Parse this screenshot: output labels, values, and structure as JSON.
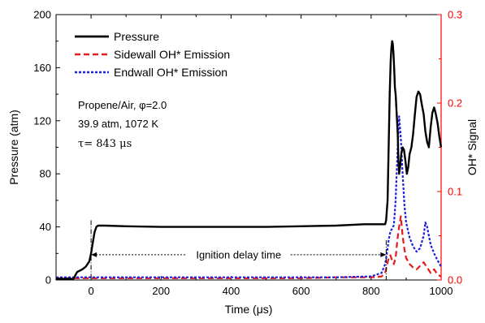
{
  "chart_data": {
    "type": "line",
    "xlabel": "Time (μs)",
    "ylabel_left": "Pressure (atm)",
    "ylabel_right": "OH* Signal",
    "xlim": [
      -100,
      1000
    ],
    "ylim_left": [
      0,
      200
    ],
    "ylim_right": [
      0,
      0.3
    ],
    "x_ticks": [
      "0",
      "200",
      "400",
      "600",
      "800",
      "1000"
    ],
    "y_ticks_left": [
      "0",
      "40",
      "80",
      "120",
      "160",
      "200"
    ],
    "y_ticks_right": [
      "0.0",
      "0.1",
      "0.2",
      "0.3"
    ],
    "grid": false,
    "legend_position": "top-left",
    "colors": {
      "pressure": "#000000",
      "sidewall": "#e41a1c",
      "endwall": "#1f1fe0",
      "right_axis": "#ff0000"
    },
    "series": [
      {
        "name": "Pressure",
        "axis": "left",
        "style": "solid",
        "x": [
          -100,
          -50,
          -40,
          -25,
          -15,
          -5,
          0,
          5,
          10,
          15,
          20,
          25,
          40,
          100,
          200,
          300,
          400,
          500,
          600,
          700,
          780,
          830,
          840,
          843,
          847,
          850,
          853,
          856,
          858,
          860,
          862,
          864,
          866,
          868,
          870,
          873,
          876,
          878,
          880,
          883,
          886,
          890,
          894,
          898,
          902,
          906,
          910,
          915,
          920,
          925,
          930,
          935,
          940,
          945,
          950,
          955,
          960,
          965,
          970,
          975,
          980,
          985,
          990,
          995,
          1000
        ],
        "y": [
          1,
          1,
          6,
          8,
          10,
          14,
          20,
          28,
          36,
          40,
          41,
          41,
          41,
          40.5,
          40,
          40,
          40,
          40,
          40.5,
          41,
          42,
          42,
          42,
          45,
          60,
          100,
          140,
          165,
          175,
          180,
          178,
          170,
          158,
          145,
          140,
          125,
          110,
          90,
          80,
          86,
          95,
          100,
          98,
          90,
          80,
          85,
          95,
          100,
          110,
          125,
          138,
          142,
          140,
          132,
          125,
          112,
          104,
          100,
          115,
          126,
          130,
          125,
          118,
          108,
          100
        ]
      },
      {
        "name": "Sidewall OH* Emission",
        "axis": "right",
        "style": "dashed",
        "x": [
          -100,
          -50,
          0,
          100,
          200,
          300,
          400,
          500,
          600,
          700,
          800,
          830,
          840,
          845,
          850,
          855,
          860,
          865,
          870,
          875,
          880,
          885,
          890,
          895,
          900,
          910,
          920,
          930,
          940,
          950,
          960,
          970,
          980,
          990,
          1000
        ],
        "y": [
          0.002,
          0.002,
          0.002,
          0.002,
          0.002,
          0.002,
          0.002,
          0.002,
          0.002,
          0.003,
          0.003,
          0.004,
          0.008,
          0.016,
          0.025,
          0.028,
          0.022,
          0.018,
          0.025,
          0.045,
          0.06,
          0.072,
          0.05,
          0.035,
          0.025,
          0.018,
          0.014,
          0.012,
          0.016,
          0.02,
          0.014,
          0.008,
          0.012,
          0.006,
          0.004
        ]
      },
      {
        "name": "Endwall OH* Emission",
        "axis": "right",
        "style": "dotted",
        "x": [
          -100,
          -50,
          0,
          100,
          200,
          300,
          400,
          500,
          600,
          700,
          800,
          830,
          840,
          845,
          850,
          855,
          860,
          865,
          870,
          875,
          880,
          885,
          890,
          895,
          900,
          910,
          920,
          930,
          940,
          950,
          955,
          960,
          965,
          970,
          980,
          990,
          1000
        ],
        "y": [
          0.003,
          0.003,
          0.003,
          0.003,
          0.003,
          0.003,
          0.003,
          0.003,
          0.003,
          0.003,
          0.004,
          0.008,
          0.018,
          0.03,
          0.045,
          0.055,
          0.058,
          0.062,
          0.09,
          0.14,
          0.185,
          0.16,
          0.12,
          0.085,
          0.065,
          0.048,
          0.038,
          0.032,
          0.036,
          0.05,
          0.065,
          0.06,
          0.05,
          0.04,
          0.03,
          0.022,
          0.015
        ]
      }
    ],
    "annotations": {
      "mixture": "Propene/Air, φ=2.0",
      "conditions": "39.9 atm, 1072 K",
      "tau": "τ= 843 μs",
      "ignition_label": "Ignition delay time"
    }
  }
}
